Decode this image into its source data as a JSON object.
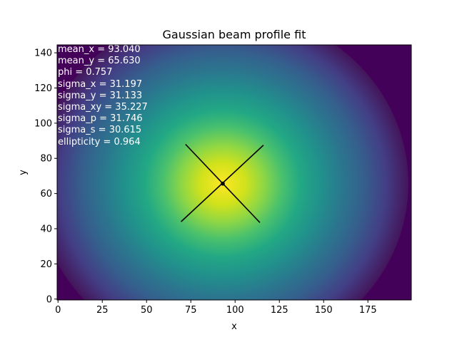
{
  "chart_data": {
    "type": "heatmap",
    "title": "Gaussian beam profile fit",
    "xlabel": "x",
    "ylabel": "y",
    "xlim": [
      0,
      199
    ],
    "ylim": [
      0,
      144
    ],
    "xticks": [
      0,
      25,
      50,
      75,
      100,
      125,
      150,
      175
    ],
    "yticks": [
      0,
      20,
      40,
      60,
      80,
      100,
      120,
      140
    ],
    "colormap": "viridis",
    "grid": false,
    "legend": "none",
    "center": {
      "x": 93.04,
      "y": 65.63
    },
    "axis_line_color": "#000000",
    "annotations": [
      "mean_x = 93.040",
      "mean_y = 65.630",
      "phi = 0.757",
      "sigma_x = 31.197",
      "sigma_y = 31.133",
      "sigma_xy = 35.227",
      "sigma_p = 31.746",
      "sigma_s = 30.615",
      "ellipticity = 0.964"
    ]
  }
}
